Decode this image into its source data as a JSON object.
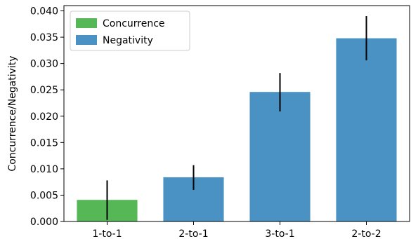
{
  "chart_data": {
    "type": "bar",
    "categories": [
      "1-to-1",
      "2-to-1",
      "3-to-1",
      "2-to-2"
    ],
    "bars": [
      {
        "category": "1-to-1",
        "series": "Concurrence",
        "value": 0.0041,
        "err_low": 0.0003,
        "err_high": 0.0078
      },
      {
        "category": "2-to-1",
        "series": "Negativity",
        "value": 0.0084,
        "err_low": 0.006,
        "err_high": 0.0107
      },
      {
        "category": "3-to-1",
        "series": "Negativity",
        "value": 0.0246,
        "err_low": 0.0209,
        "err_high": 0.0282
      },
      {
        "category": "2-to-2",
        "series": "Negativity",
        "value": 0.0348,
        "err_low": 0.0306,
        "err_high": 0.039
      }
    ],
    "series": [
      {
        "name": "Concurrence",
        "color": "#55b755"
      },
      {
        "name": "Negativity",
        "color": "#4a91c4"
      }
    ],
    "ylabel": "Concurrence/Negativity",
    "xlabel": "",
    "ylim": [
      0,
      0.041
    ],
    "yticks": [
      "0.000",
      "0.005",
      "0.010",
      "0.015",
      "0.020",
      "0.025",
      "0.030",
      "0.035",
      "0.040"
    ],
    "grid": false,
    "legend_position": "top-left"
  }
}
